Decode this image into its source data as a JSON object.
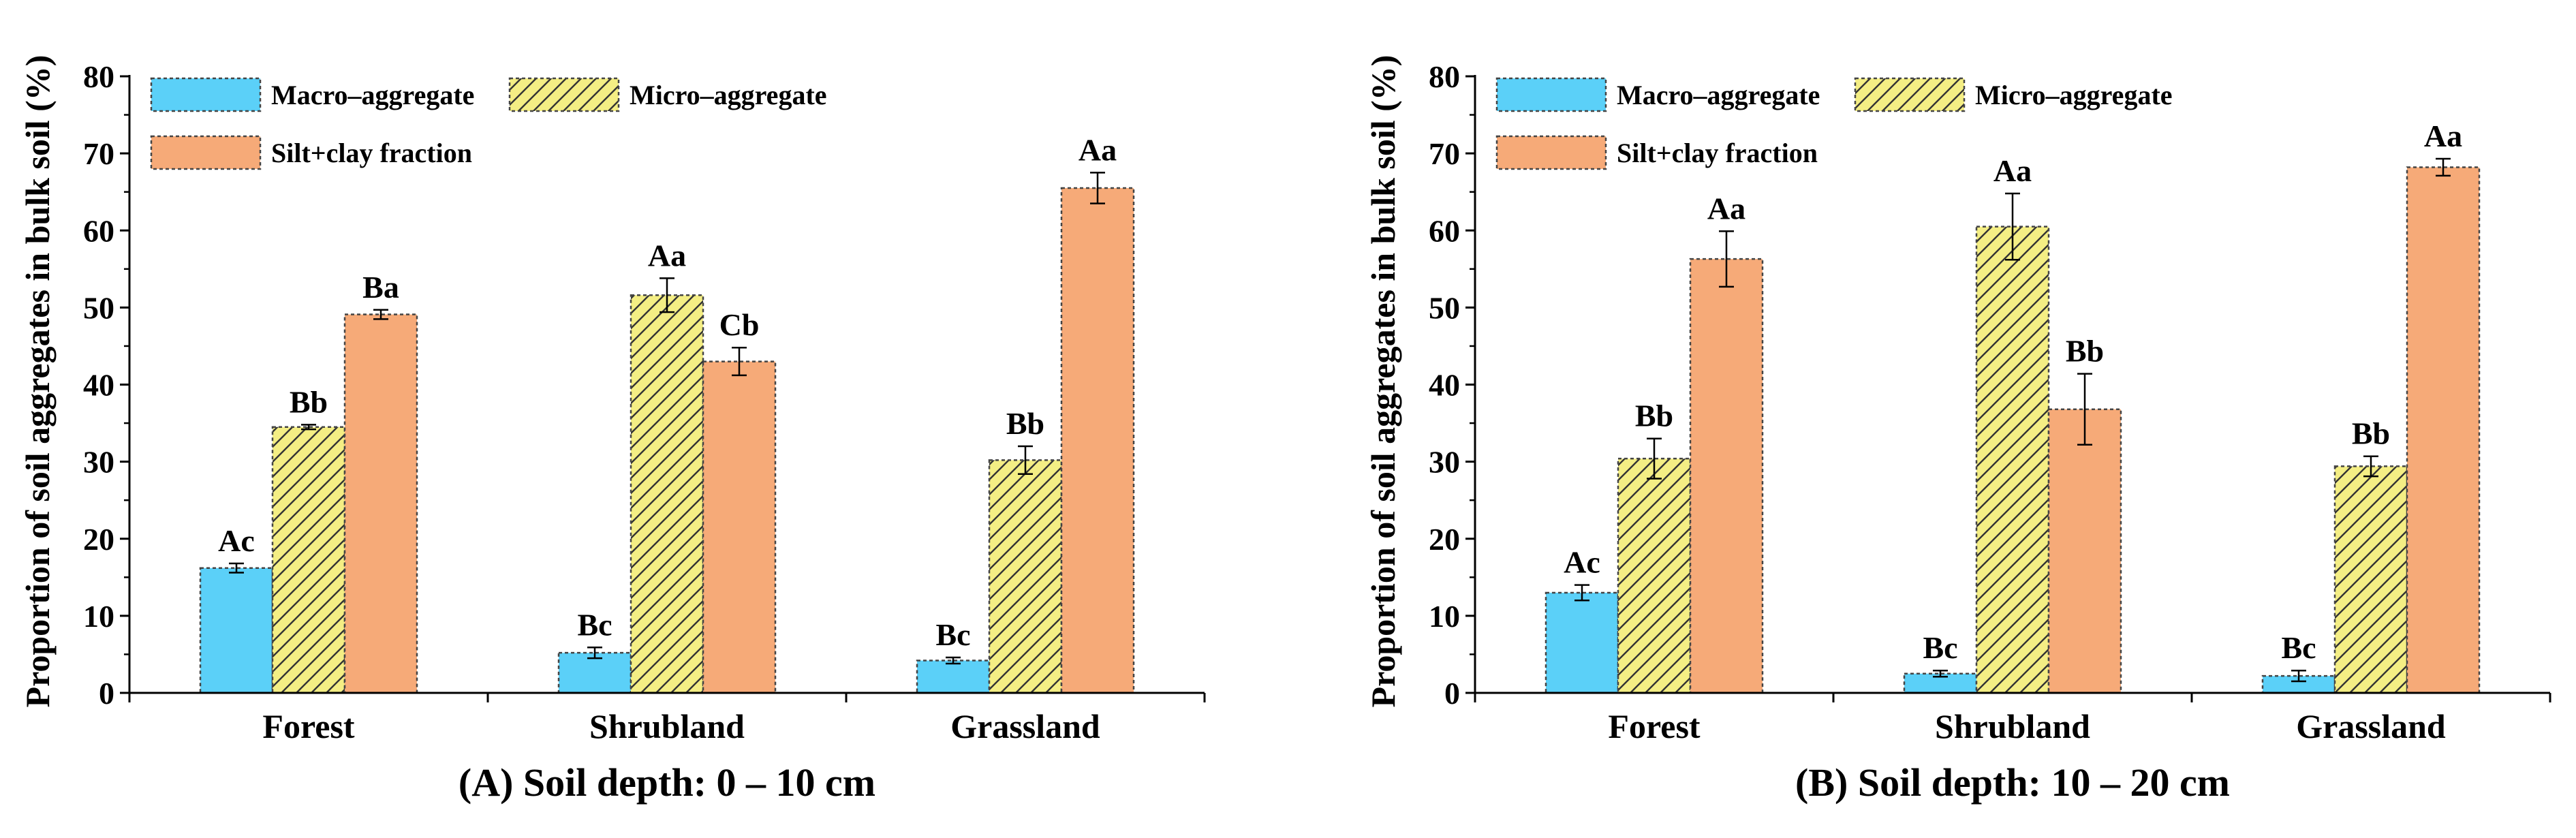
{
  "chart_data": [
    {
      "type": "bar",
      "title": "(A) Soil depth: 0 – 10 cm",
      "xlabel": "",
      "ylabel": "Proportion of soil aggregates in bulk soil (%)",
      "ylim": [
        0,
        80
      ],
      "yticks": [
        0,
        10,
        20,
        30,
        40,
        50,
        60,
        70,
        80
      ],
      "categories": [
        "Forest",
        "Shrubland",
        "Grassland"
      ],
      "legend_position": "top-left",
      "series": [
        {
          "name": "Macro–aggregate",
          "values": [
            16.2,
            5.2,
            4.2
          ],
          "errors": [
            0.6,
            0.7,
            0.4
          ],
          "labels": [
            "Ac",
            "Bc",
            "Bc"
          ]
        },
        {
          "name": "Micro–aggregate",
          "values": [
            34.5,
            51.6,
            30.2
          ],
          "errors": [
            0.3,
            2.2,
            1.8
          ],
          "labels": [
            "Bb",
            "Aa",
            "Bb"
          ]
        },
        {
          "name": "Silt+clay fraction",
          "values": [
            49.1,
            43.0,
            65.5
          ],
          "errors": [
            0.6,
            1.8,
            2.0
          ],
          "labels": [
            "Ba",
            "Cb",
            "Aa"
          ]
        }
      ]
    },
    {
      "type": "bar",
      "title": "(B) Soil depth: 10 – 20 cm",
      "xlabel": "",
      "ylabel": "Proportion of soil aggregates in bulk soil (%)",
      "ylim": [
        0,
        80
      ],
      "yticks": [
        0,
        10,
        20,
        30,
        40,
        50,
        60,
        70,
        80
      ],
      "categories": [
        "Forest",
        "Shrubland",
        "Grassland"
      ],
      "legend_position": "top-left",
      "series": [
        {
          "name": "Macro–aggregate",
          "values": [
            13.0,
            2.5,
            2.2
          ],
          "errors": [
            1.0,
            0.4,
            0.7
          ],
          "labels": [
            "Ac",
            "Bc",
            "Bc"
          ]
        },
        {
          "name": "Micro–aggregate",
          "values": [
            30.4,
            60.5,
            29.4
          ],
          "errors": [
            2.6,
            4.3,
            1.3
          ],
          "labels": [
            "Bb",
            "Aa",
            "Bb"
          ]
        },
        {
          "name": "Silt+clay fraction",
          "values": [
            56.3,
            36.8,
            68.2
          ],
          "errors": [
            3.6,
            4.6,
            1.1
          ],
          "labels": [
            "Aa",
            "Bb",
            "Aa"
          ]
        }
      ]
    }
  ],
  "colors": {
    "macro": "#5BD0F8",
    "micro": "#F4EE84",
    "silt": "#F6AA78",
    "outline": "#444444",
    "axis": "#000000"
  }
}
